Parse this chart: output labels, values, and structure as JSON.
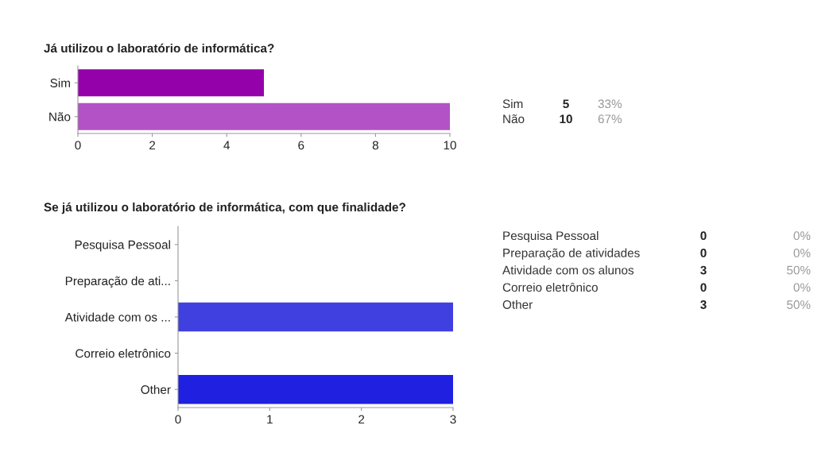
{
  "chart_data": [
    {
      "type": "bar",
      "orientation": "horizontal",
      "title": "Já utilizou o laboratório de informática?",
      "categories": [
        "Sim",
        "Não"
      ],
      "values": [
        5,
        10
      ],
      "colors": [
        "#9400aa",
        "#b352c6"
      ],
      "xlim": [
        0,
        10
      ],
      "xticks": [
        0,
        2,
        4,
        6,
        8,
        10
      ],
      "grid": false,
      "annotations": [
        "Sim",
        "5",
        "33%",
        "Não",
        "10",
        "67%"
      ]
    },
    {
      "type": "bar",
      "orientation": "horizontal",
      "title": "Se já utilizou o laboratório de informática, com que finalidade?",
      "categories": [
        "Pesquisa Pessoal",
        "Preparação de ati...",
        "Atividade com os ...",
        "Correio eletrônico",
        "Other"
      ],
      "values": [
        0,
        0,
        3,
        0,
        3
      ],
      "colors": [
        null,
        null,
        "#4040e0",
        null,
        "#2020e0"
      ],
      "xlim": [
        0,
        3
      ],
      "xticks": [
        0,
        1,
        2,
        3
      ],
      "grid": false,
      "annotations": [
        "Pesquisa Pessoal",
        "0",
        "0%",
        "Preparação de atividades",
        "0",
        "0%",
        "Atividade com os alunos",
        "3",
        "50%",
        "Correio eletrônico",
        "0",
        "0%",
        "Other",
        "3",
        "50%"
      ]
    }
  ]
}
